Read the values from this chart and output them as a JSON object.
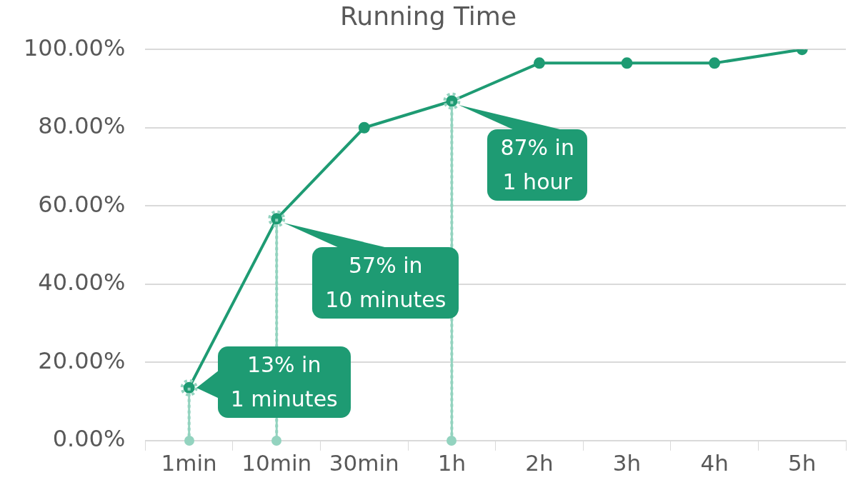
{
  "chart_data": {
    "type": "line",
    "title": "Running Time",
    "categories": [
      "1min",
      "10min",
      "30min",
      "1h",
      "2h",
      "3h",
      "4h",
      "5h"
    ],
    "series": [
      {
        "color": "#1e9b73",
        "values": [
          13.5,
          56.7,
          80,
          86.8,
          96.5,
          96.5,
          96.5,
          100
        ]
      },
      {
        "type": "lollipop",
        "color": "#93d3bf",
        "line_style": "dotted",
        "values": [
          13.5,
          56.7,
          null,
          86.8,
          null,
          null,
          null,
          null
        ]
      }
    ],
    "ylim": [
      0,
      100
    ],
    "yticks": [
      {
        "value": 0,
        "label": "0.00%"
      },
      {
        "value": 20,
        "label": "20.00%"
      },
      {
        "value": 40,
        "label": "40.00%"
      },
      {
        "value": 60,
        "label": "60.00%"
      },
      {
        "value": 80,
        "label": "80.00%"
      },
      {
        "value": 100,
        "label": "100.00%"
      }
    ],
    "grid": "y",
    "legend": false,
    "marker": "circle",
    "line_style": "solid",
    "annotations": [
      {
        "text": "13% in\n1 minutes",
        "x": "1min",
        "y": 13.5
      },
      {
        "text": "57% in\n10 minutes",
        "x": "10min",
        "y": 56.7
      },
      {
        "text": "87% in\n1 hour",
        "x": "1h",
        "y": 86.8
      }
    ]
  }
}
